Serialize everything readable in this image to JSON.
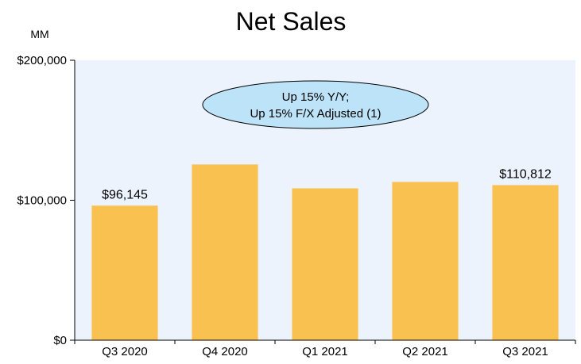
{
  "chart_data": {
    "type": "bar",
    "title": "Net Sales",
    "unit_label": "MM",
    "categories": [
      "Q3 2020",
      "Q4 2020",
      "Q1 2021",
      "Q2 2021",
      "Q3 2021"
    ],
    "values": [
      96145,
      125555,
      108518,
      113080,
      110812
    ],
    "data_labels": [
      "$96,145",
      "",
      "",
      "",
      "$110,812"
    ],
    "ylim": [
      0,
      200000
    ],
    "yticks": [
      0,
      100000,
      200000
    ],
    "ytick_labels": [
      "$0",
      "$100,000",
      "$200,000"
    ],
    "callout": {
      "line1": "Up 15% Y/Y;",
      "line2": "Up 15% F/X Adjusted (1)"
    },
    "colors": {
      "bar": "#F8C150",
      "plot_background": "#EDF3FD",
      "callout_fill": "#BDE3F8",
      "axis": "#000000"
    },
    "grid": false,
    "legend": "none"
  }
}
